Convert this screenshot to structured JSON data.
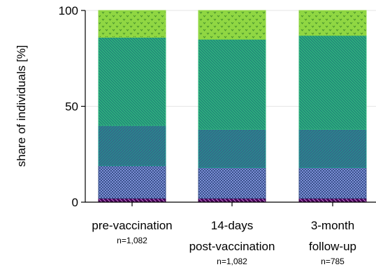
{
  "chart_data": {
    "type": "bar",
    "stacked": true,
    "title": "",
    "xlabel": "",
    "ylabel": "share of individuals [%]",
    "ylim": [
      0,
      100
    ],
    "yticks": [
      "0",
      "50",
      "100"
    ],
    "grid": true,
    "legend": "none",
    "categories": [
      {
        "lines": [
          "pre-vaccination"
        ],
        "n": "n=1,082"
      },
      {
        "lines": [
          "14-days",
          "post-vaccination"
        ],
        "n": "n=1,082"
      },
      {
        "lines": [
          "3-month",
          "follow-up"
        ],
        "n": "n=785"
      }
    ],
    "series": [
      {
        "values": [
          2,
          2,
          2
        ],
        "color": "#440154",
        "pattern": "diag-down"
      },
      {
        "values": [
          17,
          16,
          16
        ],
        "color": "#3b528b",
        "pattern": "checker"
      },
      {
        "values": [
          21,
          20,
          20
        ],
        "color": "#21918c",
        "pattern": "diag-up"
      },
      {
        "values": [
          46,
          47,
          49
        ],
        "color": "#2fb47c",
        "pattern": "diag-down"
      },
      {
        "values": [
          14,
          15,
          13
        ],
        "color": "#90d743",
        "pattern": "dots"
      }
    ]
  }
}
